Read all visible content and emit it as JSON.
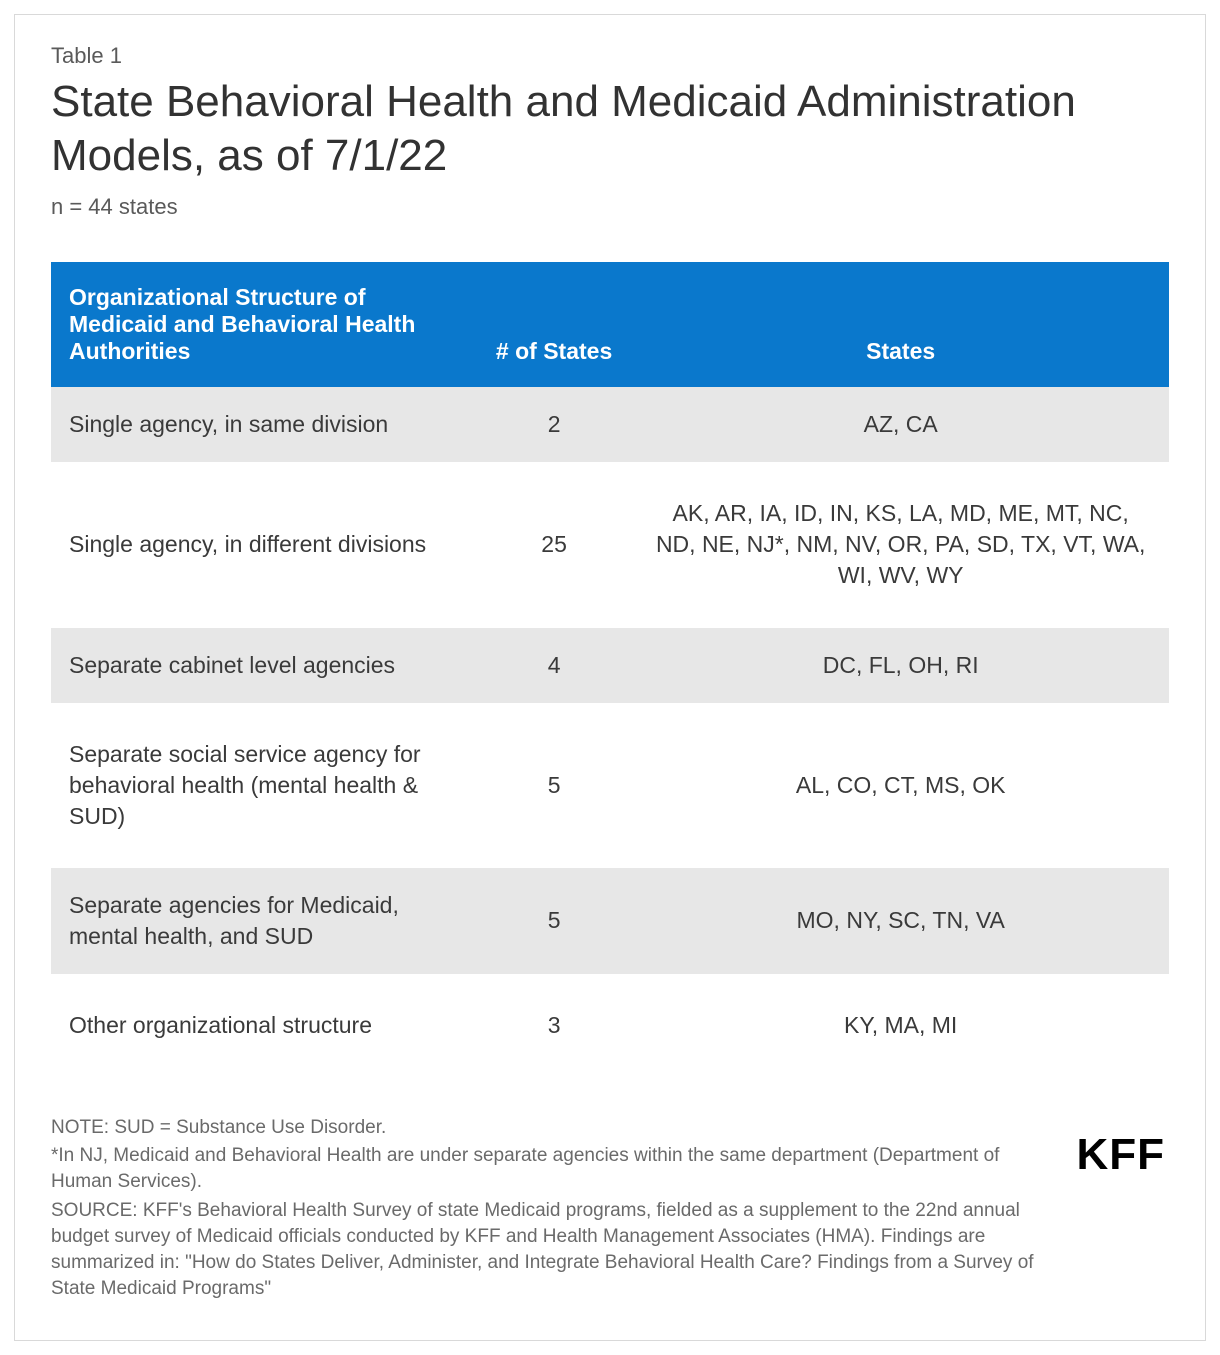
{
  "header": {
    "table_label": "Table 1",
    "title": "State Behavioral Health and Medicaid Administration Models, as of 7/1/22",
    "subtitle": "n = 44 states"
  },
  "table": {
    "header_bg": "#0a78cc",
    "header_text_color": "#ffffff",
    "row_alt_bg": "#e7e7e7",
    "row_bg": "#ffffff",
    "columns": [
      "Organizational Structure of Medicaid and Behavioral Health Authorities",
      "# of States",
      "States"
    ],
    "rows": [
      {
        "structure": "Single agency, in same division",
        "count": "2",
        "states": "AZ, CA"
      },
      {
        "structure": "Single agency, in different divisions",
        "count": "25",
        "states": "AK, AR, IA, ID, IN, KS, LA, MD, ME, MT, NC, ND, NE, NJ*, NM, NV, OR, PA, SD, TX, VT, WA, WI, WV, WY"
      },
      {
        "structure": "Separate cabinet level agencies",
        "count": "4",
        "states": "DC, FL, OH, RI"
      },
      {
        "structure": "Separate social service agency for behavioral health (mental health & SUD)",
        "count": "5",
        "states": "AL, CO, CT, MS, OK"
      },
      {
        "structure": "Separate agencies for Medicaid, mental health, and SUD",
        "count": "5",
        "states": "MO, NY, SC, TN, VA"
      },
      {
        "structure": "Other organizational structure",
        "count": "3",
        "states": "KY, MA, MI"
      }
    ]
  },
  "notes": {
    "line1": "NOTE: SUD = Substance Use Disorder.",
    "line2": "*In NJ, Medicaid and Behavioral Health are under separate agencies within the same department (Department of Human Services).",
    "line3": "SOURCE: KFF's Behavioral Health Survey of state Medicaid programs, fielded as a supplement to the 22nd annual budget survey of Medicaid officials conducted by KFF and Health Management Associates (HMA). Findings are summarized in: \"How do States Deliver, Administer, and Integrate Behavioral Health Care? Findings from a Survey of State Medicaid Programs\""
  },
  "logo": {
    "text": "KFF"
  }
}
